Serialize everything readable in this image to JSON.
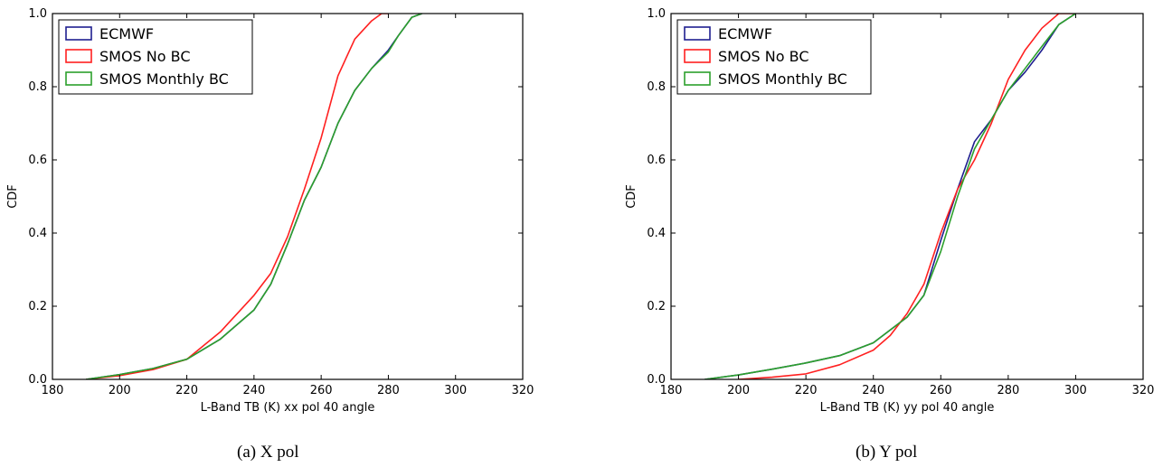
{
  "figure": {
    "captions": [
      "(a)  X pol",
      "(b)  Y pol"
    ]
  },
  "colors": {
    "ECMWF": "#1f1f8f",
    "SMOS No BC": "#ff2020",
    "SMOS Monthly BC": "#2ca02c"
  },
  "chart_data": [
    {
      "type": "line",
      "title": "",
      "xlabel": "L-Band TB (K) xx pol 40 angle",
      "ylabel": "CDF",
      "xlim": [
        180,
        320
      ],
      "ylim": [
        0.0,
        1.0
      ],
      "xticks": [
        180,
        200,
        220,
        240,
        260,
        280,
        300,
        320
      ],
      "yticks": [
        0.0,
        0.2,
        0.4,
        0.6,
        0.8,
        1.0
      ],
      "grid": false,
      "legend_position": "top-left",
      "legend": [
        "ECMWF",
        "SMOS No BC",
        "SMOS Monthly BC"
      ],
      "series": [
        {
          "name": "ECMWF",
          "x": [
            190,
            200,
            210,
            220,
            230,
            240,
            245,
            250,
            255,
            260,
            265,
            270,
            275,
            280,
            283,
            287,
            290
          ],
          "y": [
            0.0,
            0.013,
            0.03,
            0.055,
            0.11,
            0.19,
            0.26,
            0.37,
            0.49,
            0.58,
            0.7,
            0.79,
            0.85,
            0.9,
            0.94,
            0.99,
            1.0
          ]
        },
        {
          "name": "SMOS No BC",
          "x": [
            190,
            200,
            210,
            220,
            230,
            240,
            245,
            250,
            255,
            260,
            265,
            270,
            275,
            278,
            280
          ],
          "y": [
            0.0,
            0.01,
            0.027,
            0.055,
            0.13,
            0.23,
            0.29,
            0.39,
            0.52,
            0.66,
            0.83,
            0.93,
            0.98,
            1.0,
            1.0
          ]
        },
        {
          "name": "SMOS Monthly BC",
          "x": [
            190,
            200,
            210,
            220,
            230,
            240,
            245,
            250,
            255,
            260,
            265,
            270,
            275,
            280,
            283,
            287,
            290
          ],
          "y": [
            0.0,
            0.013,
            0.03,
            0.055,
            0.11,
            0.19,
            0.26,
            0.37,
            0.49,
            0.58,
            0.7,
            0.79,
            0.85,
            0.895,
            0.94,
            0.99,
            1.0
          ]
        }
      ]
    },
    {
      "type": "line",
      "title": "",
      "xlabel": "L-Band TB (K) yy pol 40 angle",
      "ylabel": "CDF",
      "xlim": [
        180,
        320
      ],
      "ylim": [
        0.0,
        1.0
      ],
      "xticks": [
        180,
        200,
        220,
        240,
        260,
        280,
        300,
        320
      ],
      "yticks": [
        0.0,
        0.2,
        0.4,
        0.6,
        0.8,
        1.0
      ],
      "grid": false,
      "legend_position": "top-left",
      "legend": [
        "ECMWF",
        "SMOS No BC",
        "SMOS Monthly BC"
      ],
      "series": [
        {
          "name": "ECMWF",
          "x": [
            190,
            200,
            210,
            220,
            230,
            240,
            250,
            255,
            260,
            265,
            270,
            275,
            280,
            285,
            290,
            295,
            300
          ],
          "y": [
            0.0,
            0.012,
            0.028,
            0.045,
            0.065,
            0.1,
            0.17,
            0.23,
            0.38,
            0.52,
            0.65,
            0.71,
            0.79,
            0.84,
            0.9,
            0.97,
            1.0
          ]
        },
        {
          "name": "SMOS No BC",
          "x": [
            200,
            210,
            220,
            230,
            240,
            245,
            250,
            255,
            260,
            265,
            270,
            275,
            280,
            285,
            290,
            295,
            300
          ],
          "y": [
            0.0,
            0.006,
            0.015,
            0.04,
            0.08,
            0.12,
            0.18,
            0.26,
            0.4,
            0.52,
            0.6,
            0.7,
            0.82,
            0.9,
            0.96,
            1.0,
            1.0
          ]
        },
        {
          "name": "SMOS Monthly BC",
          "x": [
            190,
            200,
            210,
            220,
            230,
            240,
            250,
            255,
            260,
            265,
            270,
            275,
            280,
            285,
            290,
            295,
            300
          ],
          "y": [
            0.0,
            0.012,
            0.028,
            0.045,
            0.065,
            0.1,
            0.17,
            0.23,
            0.35,
            0.5,
            0.63,
            0.71,
            0.79,
            0.85,
            0.91,
            0.97,
            1.0
          ]
        }
      ]
    }
  ]
}
